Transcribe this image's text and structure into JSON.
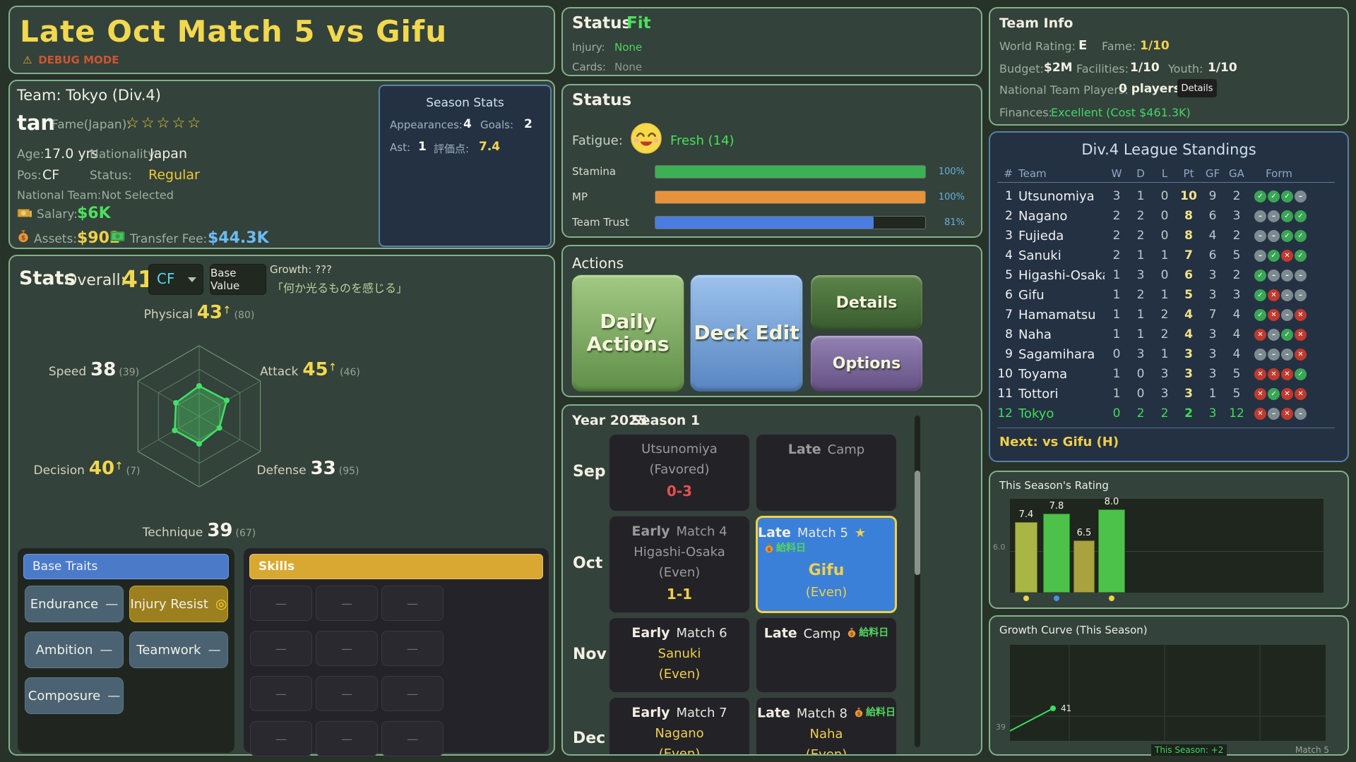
{
  "header": {
    "title": "Late Oct  Match 5  vs Gifu",
    "debug_icon": "⚠",
    "debug_text": "DEBUG MODE"
  },
  "player": {
    "team_label": "Team: Tokyo (Div.4)",
    "name": "tan",
    "fame_label": "Fame(Japan):",
    "fame_stars": "☆☆☆☆☆",
    "age_label": "Age:",
    "age": "17.0 yrs",
    "nationality_label": "Nationality:",
    "nationality": "Japan",
    "pos_label": "Pos:",
    "pos": "CF",
    "status_label": "Status:",
    "status": "Regular",
    "national_team": "National Team:Not Selected",
    "salary_label": "Salary:",
    "salary": "$6K",
    "assets_label": "Assets:",
    "assets": "$902",
    "transfer_label": "Transfer Fee:",
    "transfer_fee": "$44.3K",
    "season_stats": {
      "title": "Season Stats",
      "appearances_label": "Appearances:",
      "appearances": "4",
      "goals_label": "Goals:",
      "goals": "2",
      "assists_label": "Ast:",
      "assists": "1",
      "rating_label": "評価点:",
      "rating": "7.4"
    }
  },
  "stats": {
    "title": "Stats",
    "overall_label": "Overall:",
    "overall": "41",
    "position_select": "CF",
    "base_value_button": "Base Value",
    "growth_label": "Growth: ???",
    "growth_comment": "「何か光るものを感じる」",
    "radar": {
      "type": "radar",
      "max": 100,
      "axes": [
        {
          "name": "Physical",
          "value": 43,
          "arrow": true,
          "sub": "(80)"
        },
        {
          "name": "Attack",
          "value": 45,
          "arrow": true,
          "sub": "(46)"
        },
        {
          "name": "Defense",
          "value": 33,
          "arrow": false,
          "sub": "(95)"
        },
        {
          "name": "Technique",
          "value": 39,
          "arrow": false,
          "sub": "(67)"
        },
        {
          "name": "Decision",
          "value": 40,
          "arrow": true,
          "sub": "(7)"
        },
        {
          "name": "Speed",
          "value": 38,
          "arrow": false,
          "sub": "(39)"
        }
      ]
    },
    "base_traits": {
      "header": "Base Traits",
      "traits": [
        {
          "label": "Endurance",
          "mark": "—",
          "style": "slate"
        },
        {
          "label": "Injury Resist",
          "mark": "◎",
          "style": "gold"
        },
        {
          "label": "Ambition",
          "mark": "—",
          "style": "slate"
        },
        {
          "label": "Teamwork",
          "mark": "—",
          "style": "slate"
        },
        {
          "label": "Composure",
          "mark": "—",
          "style": "slate"
        }
      ]
    },
    "skills": {
      "header": "Skills",
      "empty_mark": "—",
      "slot_count": 12
    }
  },
  "condition": {
    "title": "Status",
    "fit": "Fit",
    "injury_label": "Injury:",
    "injury": "None",
    "cards_label": "Cards:",
    "cards": "None"
  },
  "status_panel": {
    "title": "Status",
    "fatigue_label": "Fatigue:",
    "fatigue_value": "Fresh (14)",
    "bars": [
      {
        "label": "Stamina",
        "percent": 100,
        "text": "100%",
        "color": "#3cb054"
      },
      {
        "label": "MP",
        "percent": 100,
        "text": "100%",
        "color": "#e8923c"
      },
      {
        "label": "Team Trust",
        "percent": 81,
        "text": "81%",
        "color": "#4b7de0"
      }
    ]
  },
  "actions": {
    "title": "Actions",
    "daily": "Daily Actions",
    "deck": "Deck Edit",
    "details": "Details",
    "options": "Options"
  },
  "schedule": {
    "year": "Year 2025",
    "season": "Season 1",
    "payday_label": "給料日",
    "rows": [
      {
        "month": "Sep",
        "left": {
          "lines": [
            {
              "t": "Utsunomiya",
              "c": "dim"
            },
            {
              "t": "(Favored)",
              "c": "dim"
            },
            {
              "t": "0-3",
              "c": "red",
              "b": true
            }
          ]
        },
        "right": {
          "lines": [
            {
              "slot": "Late",
              "match": "Camp",
              "dim": true
            }
          ]
        }
      },
      {
        "month": "Oct",
        "left": {
          "lines": [
            {
              "slot": "Early",
              "match": "Match 4",
              "dim": true
            },
            {
              "t": "Higashi-Osaka",
              "c": "dim"
            },
            {
              "t": "(Even)",
              "c": "dim"
            },
            {
              "t": "1-1",
              "c": "yellow",
              "b": true
            }
          ]
        },
        "right": {
          "selected": true,
          "lines": [
            {
              "slot": "Late",
              "match": "Match 5",
              "star": true,
              "payday": true
            },
            {
              "t": "Gifu",
              "c": "yellow",
              "b": true,
              "big": true
            },
            {
              "t": "(Even)",
              "c": "yellow"
            }
          ]
        }
      },
      {
        "month": "Nov",
        "left": {
          "lines": [
            {
              "slot": "Early",
              "match": "Match 6"
            },
            {
              "t": "Sanuki",
              "c": "yellow"
            },
            {
              "t": "(Even)",
              "c": "yellow"
            }
          ]
        },
        "right": {
          "lines": [
            {
              "slot": "Late",
              "match": "Camp",
              "payday": true
            }
          ]
        }
      },
      {
        "month": "Dec",
        "left": {
          "lines": [
            {
              "slot": "Early",
              "match": "Match 7"
            },
            {
              "t": "Nagano",
              "c": "yellow"
            },
            {
              "t": "(Even)",
              "c": "yellow"
            }
          ]
        },
        "right": {
          "lines": [
            {
              "slot": "Late",
              "match": "Match 8",
              "payday": true
            },
            {
              "t": "Naha",
              "c": "yellow"
            },
            {
              "t": "(Even)",
              "c": "yellow"
            }
          ]
        }
      }
    ]
  },
  "team_info": {
    "title": "Team Info",
    "world_rating_label": "World Rating:",
    "world_rating": "E",
    "fame_label": "Fame:",
    "fame": "1/10",
    "budget_label": "Budget:",
    "budget": "$2M",
    "facilities_label": "Facilities:",
    "facilities": "1/10",
    "youth_label": "Youth:",
    "youth": "1/10",
    "ntp_label": "National Team Players:",
    "ntp": "0 players",
    "details_button": "Details",
    "finances_label": "Finances:",
    "finances": "Excellent (Cost $461.3K)"
  },
  "standings": {
    "title": "Div.4 League Standings",
    "columns": [
      "#",
      "Team",
      "W",
      "D",
      "L",
      "Pt",
      "GF",
      "GA",
      "Form"
    ],
    "rows": [
      {
        "pos": 1,
        "team": "Utsunomiya",
        "w": 3,
        "d": 1,
        "l": 0,
        "pt": 10,
        "gf": 9,
        "ga": 2,
        "form": [
          "w",
          "w",
          "w",
          "n"
        ]
      },
      {
        "pos": 2,
        "team": "Nagano",
        "w": 2,
        "d": 2,
        "l": 0,
        "pt": 8,
        "gf": 6,
        "ga": 3,
        "form": [
          "n",
          "n",
          "w",
          "w"
        ]
      },
      {
        "pos": 3,
        "team": "Fujieda",
        "w": 2,
        "d": 2,
        "l": 0,
        "pt": 8,
        "gf": 4,
        "ga": 2,
        "form": [
          "n",
          "n",
          "w",
          "w"
        ]
      },
      {
        "pos": 4,
        "team": "Sanuki",
        "w": 2,
        "d": 1,
        "l": 1,
        "pt": 7,
        "gf": 6,
        "ga": 5,
        "form": [
          "n",
          "w",
          "l",
          "w"
        ]
      },
      {
        "pos": 5,
        "team": "Higashi-Osaka",
        "w": 1,
        "d": 3,
        "l": 0,
        "pt": 6,
        "gf": 3,
        "ga": 2,
        "form": [
          "w",
          "n",
          "n",
          "n"
        ]
      },
      {
        "pos": 6,
        "team": "Gifu",
        "w": 1,
        "d": 2,
        "l": 1,
        "pt": 5,
        "gf": 3,
        "ga": 3,
        "form": [
          "w",
          "l",
          "n",
          "n"
        ]
      },
      {
        "pos": 7,
        "team": "Hamamatsu",
        "w": 1,
        "d": 1,
        "l": 2,
        "pt": 4,
        "gf": 7,
        "ga": 4,
        "form": [
          "w",
          "l",
          "n",
          "l"
        ]
      },
      {
        "pos": 8,
        "team": "Naha",
        "w": 1,
        "d": 1,
        "l": 2,
        "pt": 4,
        "gf": 3,
        "ga": 4,
        "form": [
          "l",
          "n",
          "w",
          "l"
        ]
      },
      {
        "pos": 9,
        "team": "Sagamihara",
        "w": 0,
        "d": 3,
        "l": 1,
        "pt": 3,
        "gf": 3,
        "ga": 4,
        "form": [
          "n",
          "n",
          "n",
          "l"
        ]
      },
      {
        "pos": 10,
        "team": "Toyama",
        "w": 1,
        "d": 0,
        "l": 3,
        "pt": 3,
        "gf": 3,
        "ga": 5,
        "form": [
          "l",
          "l",
          "l",
          "w"
        ]
      },
      {
        "pos": 11,
        "team": "Tottori",
        "w": 1,
        "d": 0,
        "l": 3,
        "pt": 3,
        "gf": 1,
        "ga": 5,
        "form": [
          "l",
          "w",
          "l",
          "l"
        ]
      },
      {
        "pos": 12,
        "team": "Tokyo",
        "w": 0,
        "d": 2,
        "l": 2,
        "pt": 2,
        "gf": 3,
        "ga": 12,
        "form": [
          "l",
          "n",
          "l",
          "n"
        ],
        "highlight": true
      }
    ],
    "next_label": "Next: vs Gifu (H)"
  },
  "rating_chart": {
    "title": "This Season's Rating",
    "type": "bar",
    "values": [
      7.4,
      7.8,
      6.5,
      8.0
    ],
    "colors": [
      "#a9b544",
      "#4cc24a",
      "#a8a23f",
      "#4cc24a"
    ],
    "ylim": [
      4.0,
      8.5
    ],
    "gridline_value": 6.0,
    "gridline_label": "6.0",
    "dots": [
      {
        "bar": 0,
        "color": "#e8d44a"
      },
      {
        "bar": 1,
        "color": "#4a90e0"
      },
      {
        "bar": 3,
        "color": "#e8d44a"
      }
    ]
  },
  "growth_chart": {
    "title": "Growth Curve (This Season)",
    "type": "line",
    "start_value": 39,
    "start_label": "39",
    "current_value": 41,
    "point_label": "41",
    "season_note": "This Season: +2",
    "xaxis_note": "Match 5"
  }
}
